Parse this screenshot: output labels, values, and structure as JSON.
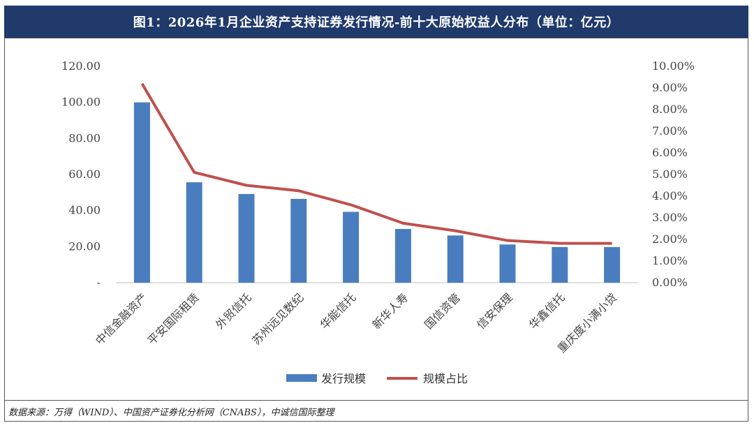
{
  "title": "图1：2026年1月企业资产支持证券发行情况-前十大原始权益人分布（单位：亿元）",
  "source": "数据来源：万得（WIND）、中国资产证券化分析网（CNABS），中诚信国际整理",
  "colors": {
    "bar": "#4a7dbf",
    "line": "#c0504d",
    "title_bg": "#1f3a6b"
  },
  "chart_data": {
    "type": "bar",
    "categories": [
      "中信金融资产",
      "平安国际租赁",
      "外贸信托",
      "苏州远见数纪",
      "华能信托",
      "新华人寿",
      "国信资管",
      "信安保理",
      "华鑫信托",
      "重庆度小满小贷"
    ],
    "series": [
      {
        "name": "发行规模",
        "type": "bar",
        "axis": "left",
        "values": [
          100.0,
          55.7,
          49.2,
          46.5,
          39.3,
          29.8,
          26.2,
          21.2,
          19.8,
          19.8
        ]
      },
      {
        "name": "规模占比",
        "type": "line",
        "axis": "right",
        "values": [
          9.2,
          5.1,
          4.5,
          4.25,
          3.6,
          2.75,
          2.4,
          1.95,
          1.82,
          1.82
        ]
      }
    ],
    "left_axis": {
      "ylim": [
        0,
        120
      ],
      "ticks": [
        "-",
        "20.00",
        "40.00",
        "60.00",
        "80.00",
        "100.00",
        "120.00"
      ]
    },
    "right_axis": {
      "ylim": [
        0,
        10
      ],
      "ticks": [
        "0.00%",
        "1.00%",
        "2.00%",
        "3.00%",
        "4.00%",
        "5.00%",
        "6.00%",
        "7.00%",
        "8.00%",
        "9.00%",
        "10.00%"
      ]
    },
    "grid": false,
    "legend": "bottom"
  }
}
